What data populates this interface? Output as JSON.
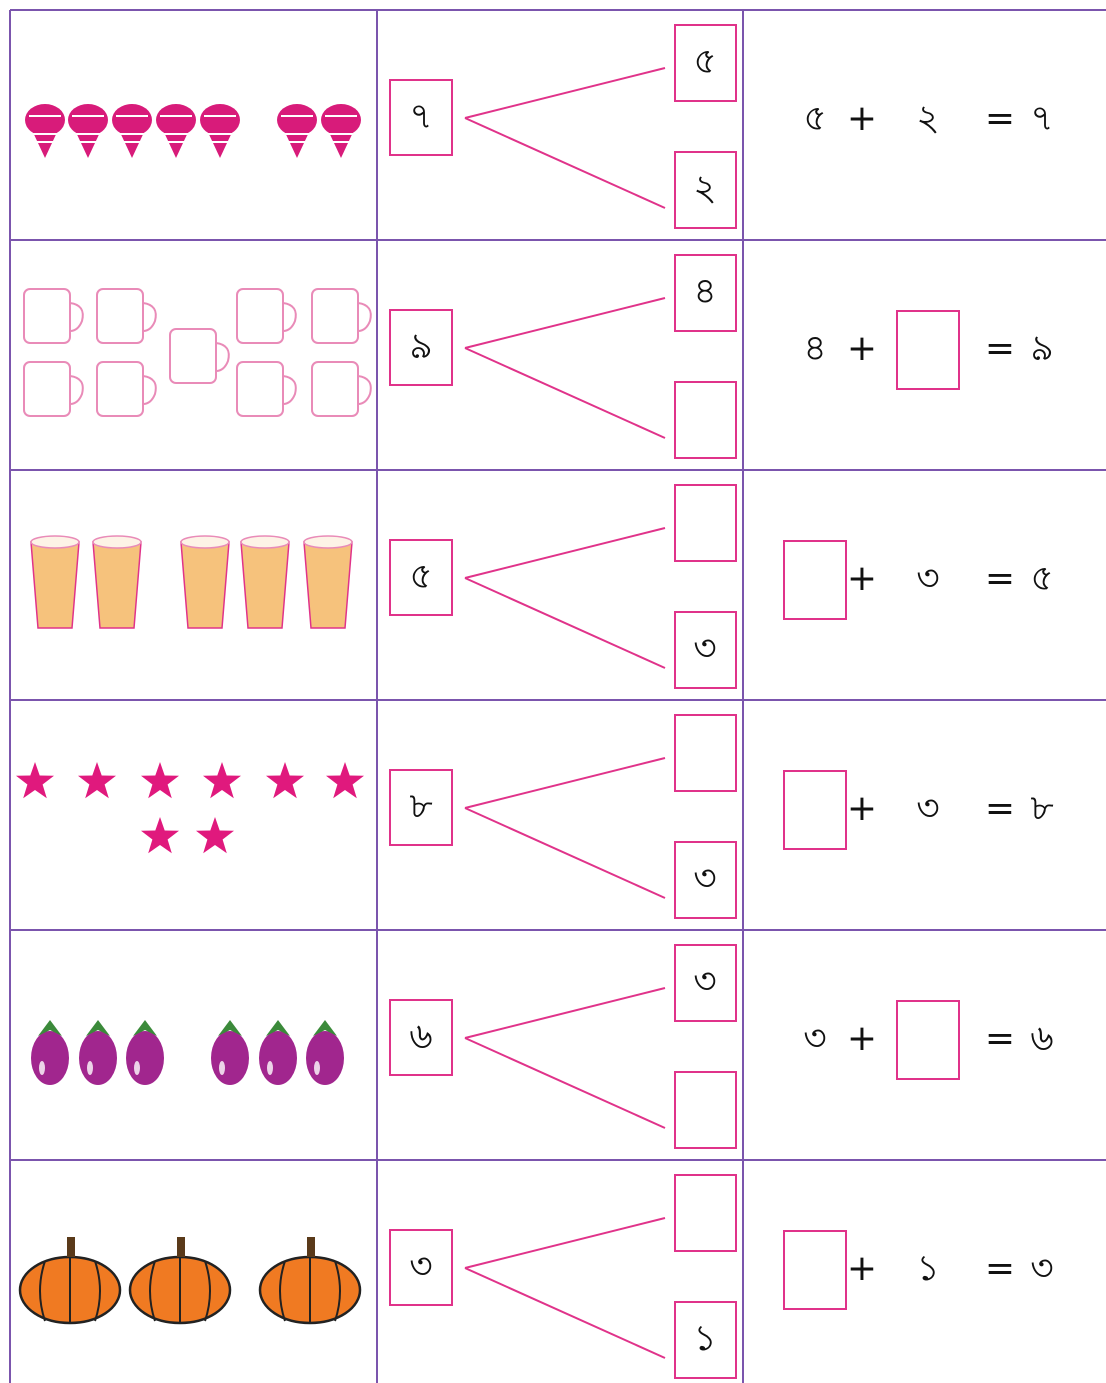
{
  "symbols": {
    "plus": "+",
    "equals": "="
  },
  "rows": [
    {
      "total": "৭",
      "parts": [
        "৫",
        "২"
      ],
      "equation": {
        "left": "৫",
        "right": "২",
        "result": "৭"
      }
    },
    {
      "total": "৯",
      "parts": [
        "৪",
        null
      ],
      "equation": {
        "left": "৪",
        "right": null,
        "result": "৯"
      }
    },
    {
      "total": "৫",
      "parts": [
        null,
        "৩"
      ],
      "equation": {
        "left": null,
        "right": "৩",
        "result": "৫"
      }
    },
    {
      "total": "৮",
      "parts": [
        null,
        "৩"
      ],
      "equation": {
        "left": null,
        "right": "৩",
        "result": "৮"
      }
    },
    {
      "total": "৬",
      "parts": [
        "৩",
        null
      ],
      "equation": {
        "left": "৩",
        "right": null,
        "result": "৬"
      }
    },
    {
      "total": "৩",
      "parts": [
        null,
        "১"
      ],
      "equation": {
        "left": null,
        "right": "১",
        "result": "৩"
      }
    }
  ]
}
